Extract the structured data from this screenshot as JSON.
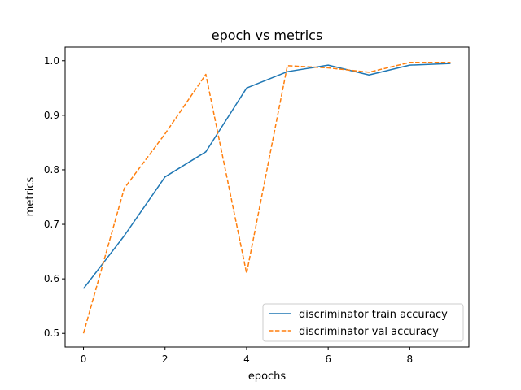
{
  "chart_data": {
    "type": "line",
    "title": "epoch vs metrics",
    "xlabel": "epochs",
    "ylabel": "metrics",
    "x": [
      0,
      1,
      2,
      3,
      4,
      5,
      6,
      7,
      8,
      9
    ],
    "xlim": [
      -0.45,
      9.45
    ],
    "ylim": [
      0.475,
      1.025
    ],
    "xticks": [
      0,
      2,
      4,
      6,
      8
    ],
    "xtick_labels": [
      "0",
      "2",
      "4",
      "6",
      "8"
    ],
    "yticks": [
      0.5,
      0.6,
      0.7,
      0.8,
      0.9,
      1.0
    ],
    "ytick_labels": [
      "0.5",
      "0.6",
      "0.7",
      "0.8",
      "0.9",
      "1.0"
    ],
    "grid": false,
    "legend_position": "lower-right",
    "series": [
      {
        "name": "discriminator train accuracy",
        "color": "#1f77b4",
        "dash": "solid",
        "values": [
          0.582,
          0.679,
          0.787,
          0.833,
          0.95,
          0.98,
          0.992,
          0.974,
          0.992,
          0.995
        ]
      },
      {
        "name": "discriminator val accuracy",
        "color": "#ff7f0e",
        "dash": "dashed",
        "values": [
          0.5,
          0.766,
          0.866,
          0.975,
          0.61,
          0.991,
          0.987,
          0.979,
          0.997,
          0.997
        ]
      }
    ]
  }
}
